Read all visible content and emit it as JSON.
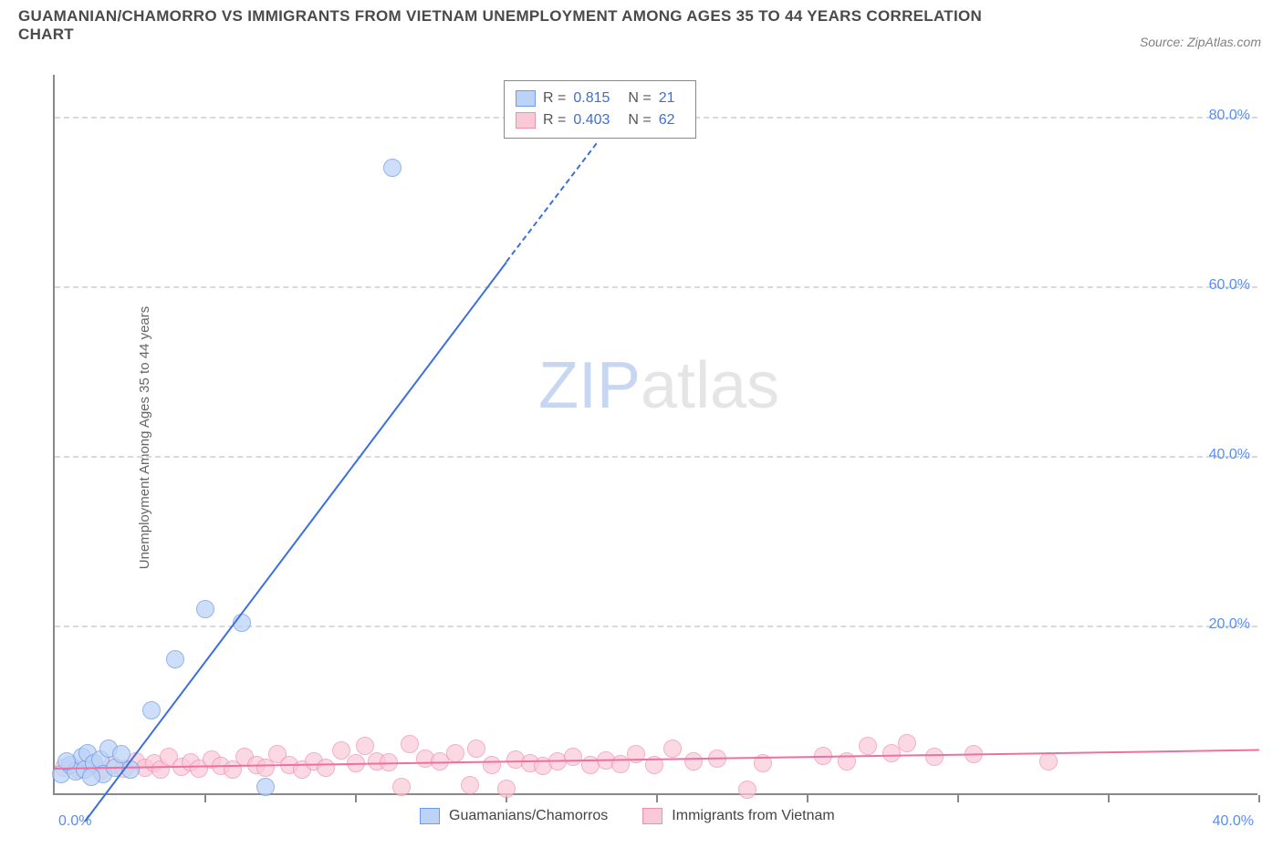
{
  "title": "GUAMANIAN/CHAMORRO VS IMMIGRANTS FROM VIETNAM UNEMPLOYMENT AMONG AGES 35 TO 44 YEARS CORRELATION CHART",
  "source": "Source: ZipAtlas.com",
  "ylabel": "Unemployment Among Ages 35 to 44 years",
  "watermark_zip": "ZIP",
  "watermark_atlas": "atlas",
  "chart": {
    "type": "scatter",
    "x_min": 0,
    "x_max": 40,
    "y_min": 0,
    "y_max": 85,
    "grid_dash_color": "#d9d9d9",
    "axis_color": "#888888",
    "y_ticks": [
      {
        "value": 20,
        "label": "20.0%"
      },
      {
        "value": 40,
        "label": "40.0%"
      },
      {
        "value": 60,
        "label": "60.0%"
      },
      {
        "value": 80,
        "label": "80.0%"
      }
    ],
    "y_tick_color": "#5b8def",
    "x_ticks_marks": [
      5,
      10,
      15,
      20,
      25,
      30,
      35,
      40
    ],
    "x_tick_labels": [
      {
        "value": 0,
        "label": "0.0%",
        "color": "#5b8def",
        "align": "left"
      },
      {
        "value": 40,
        "label": "40.0%",
        "color": "#5b8def",
        "align": "right"
      }
    ],
    "top_legend": {
      "rows": [
        {
          "swatch_fill": "#bcd3f7",
          "swatch_border": "#6f9be8",
          "r_label": "R =",
          "r_value": "0.815",
          "n_label": "N =",
          "n_value": "21"
        },
        {
          "swatch_fill": "#f9c9d7",
          "swatch_border": "#f08eb0",
          "r_label": "R =",
          "r_value": "0.403",
          "n_label": "N =",
          "n_value": "62"
        }
      ],
      "label_color": "#555555",
      "value_color": "#3b6fe0"
    },
    "bottom_legend": [
      {
        "swatch_fill": "#bcd3f7",
        "swatch_border": "#6f9be8",
        "label": "Guamanians/Chamorros"
      },
      {
        "swatch_fill": "#f9c9d7",
        "swatch_border": "#f08eb0",
        "label": "Immigrants from Vietnam"
      }
    ],
    "series_blue": {
      "marker_fill": "#bcd3f7",
      "marker_border": "#6f9be8",
      "marker_opacity": 0.75,
      "marker_radius_px": 9,
      "trend_color": "#3b6fe0",
      "trend_solid": {
        "x1": 1.0,
        "y1": -3.0,
        "x2": 15.0,
        "y2": 63.0
      },
      "trend_dashed": {
        "x1": 15.0,
        "y1": 63.0,
        "x2": 18.0,
        "y2": 77.0
      },
      "points": [
        {
          "x": 0.2,
          "y": 2.5
        },
        {
          "x": 0.5,
          "y": 3.5
        },
        {
          "x": 0.7,
          "y": 2.8
        },
        {
          "x": 0.9,
          "y": 4.5
        },
        {
          "x": 1.0,
          "y": 3.0
        },
        {
          "x": 1.1,
          "y": 5.0
        },
        {
          "x": 1.3,
          "y": 3.8
        },
        {
          "x": 1.5,
          "y": 4.2
        },
        {
          "x": 1.6,
          "y": 2.5
        },
        {
          "x": 1.8,
          "y": 5.5
        },
        {
          "x": 2.0,
          "y": 3.2
        },
        {
          "x": 2.2,
          "y": 4.8
        },
        {
          "x": 2.5,
          "y": 3.0
        },
        {
          "x": 3.2,
          "y": 10.0
        },
        {
          "x": 4.0,
          "y": 16.0
        },
        {
          "x": 5.0,
          "y": 22.0
        },
        {
          "x": 6.2,
          "y": 20.3
        },
        {
          "x": 7.0,
          "y": 1.0
        },
        {
          "x": 11.2,
          "y": 74.0
        },
        {
          "x": 1.2,
          "y": 2.2
        },
        {
          "x": 0.4,
          "y": 4.0
        }
      ]
    },
    "series_pink": {
      "marker_fill": "#f9c9d7",
      "marker_border": "#f08eb0",
      "marker_opacity": 0.7,
      "marker_radius_px": 9,
      "trend_color": "#ef6fa0",
      "trend_solid": {
        "x1": 0.0,
        "y1": 3.2,
        "x2": 40.0,
        "y2": 5.4
      },
      "points": [
        {
          "x": 0.3,
          "y": 3.2
        },
        {
          "x": 0.8,
          "y": 3.0
        },
        {
          "x": 1.2,
          "y": 3.5
        },
        {
          "x": 1.5,
          "y": 2.8
        },
        {
          "x": 1.9,
          "y": 3.6
        },
        {
          "x": 2.3,
          "y": 3.1
        },
        {
          "x": 2.7,
          "y": 4.0
        },
        {
          "x": 3.0,
          "y": 3.2
        },
        {
          "x": 3.3,
          "y": 3.8
        },
        {
          "x": 3.5,
          "y": 3.0
        },
        {
          "x": 3.8,
          "y": 4.5
        },
        {
          "x": 4.2,
          "y": 3.3
        },
        {
          "x": 4.5,
          "y": 3.9
        },
        {
          "x": 4.8,
          "y": 3.1
        },
        {
          "x": 5.2,
          "y": 4.2
        },
        {
          "x": 5.5,
          "y": 3.4
        },
        {
          "x": 5.9,
          "y": 3.0
        },
        {
          "x": 6.3,
          "y": 4.5
        },
        {
          "x": 6.7,
          "y": 3.6
        },
        {
          "x": 7.0,
          "y": 3.2
        },
        {
          "x": 7.4,
          "y": 4.8
        },
        {
          "x": 7.8,
          "y": 3.5
        },
        {
          "x": 8.2,
          "y": 3.0
        },
        {
          "x": 8.6,
          "y": 4.0
        },
        {
          "x": 9.0,
          "y": 3.2
        },
        {
          "x": 9.5,
          "y": 5.3
        },
        {
          "x": 10.0,
          "y": 3.8
        },
        {
          "x": 10.3,
          "y": 5.8
        },
        {
          "x": 10.7,
          "y": 4.0
        },
        {
          "x": 11.1,
          "y": 3.9
        },
        {
          "x": 11.5,
          "y": 1.0
        },
        {
          "x": 11.8,
          "y": 6.0
        },
        {
          "x": 12.3,
          "y": 4.3
        },
        {
          "x": 12.8,
          "y": 4.0
        },
        {
          "x": 13.3,
          "y": 5.0
        },
        {
          "x": 13.8,
          "y": 1.2
        },
        {
          "x": 14.0,
          "y": 5.5
        },
        {
          "x": 14.5,
          "y": 3.5
        },
        {
          "x": 15.0,
          "y": 0.8
        },
        {
          "x": 15.3,
          "y": 4.2
        },
        {
          "x": 15.8,
          "y": 3.8
        },
        {
          "x": 16.2,
          "y": 3.4
        },
        {
          "x": 16.7,
          "y": 4.0
        },
        {
          "x": 17.2,
          "y": 4.5
        },
        {
          "x": 17.8,
          "y": 3.6
        },
        {
          "x": 18.3,
          "y": 4.1
        },
        {
          "x": 18.8,
          "y": 3.7
        },
        {
          "x": 19.3,
          "y": 4.8
        },
        {
          "x": 19.9,
          "y": 3.5
        },
        {
          "x": 20.5,
          "y": 5.5
        },
        {
          "x": 21.2,
          "y": 4.0
        },
        {
          "x": 22.0,
          "y": 4.3
        },
        {
          "x": 23.0,
          "y": 0.6
        },
        {
          "x": 23.5,
          "y": 3.8
        },
        {
          "x": 25.5,
          "y": 4.6
        },
        {
          "x": 26.3,
          "y": 4.0
        },
        {
          "x": 27.0,
          "y": 5.8
        },
        {
          "x": 27.8,
          "y": 5.0
        },
        {
          "x": 28.3,
          "y": 6.1
        },
        {
          "x": 29.2,
          "y": 4.5
        },
        {
          "x": 30.5,
          "y": 4.8
        },
        {
          "x": 33.0,
          "y": 4.0
        }
      ]
    }
  }
}
